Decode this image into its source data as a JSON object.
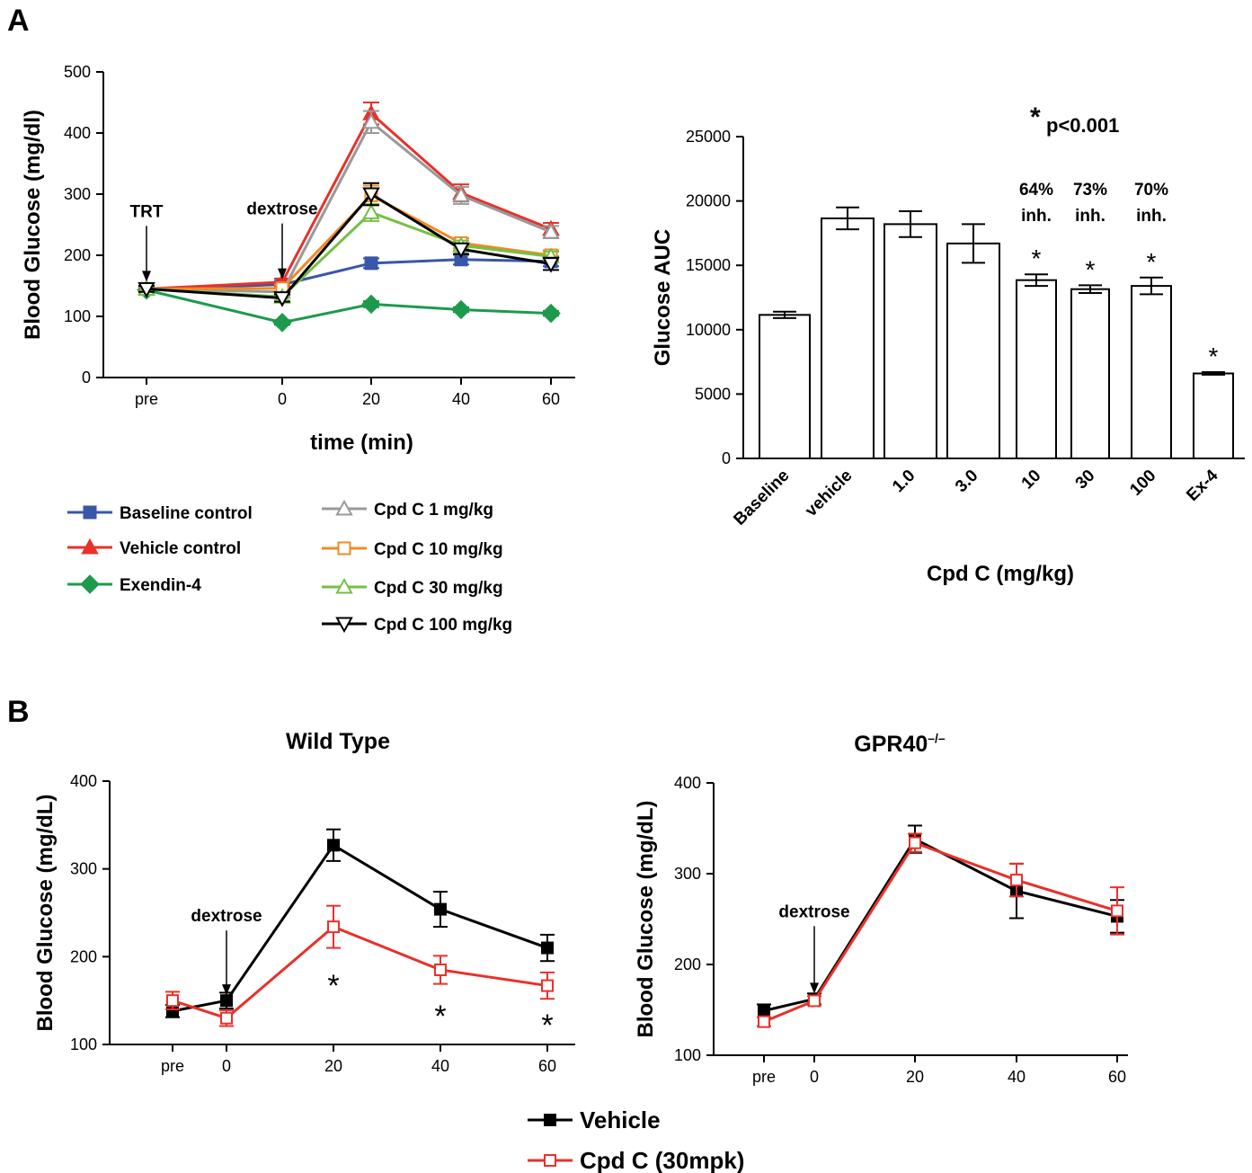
{
  "panels": {
    "a": "A",
    "b": "B"
  },
  "chart_data": [
    {
      "id": "a1",
      "type": "line",
      "xlabel": "time (min)",
      "ylabel": "Blood Glucose (mg/dl)",
      "xticks": [
        "pre",
        "0",
        "20",
        "40",
        "60"
      ],
      "xpos": [
        -45,
        0,
        20,
        40,
        60
      ],
      "ylim": [
        0,
        500
      ],
      "yticks": [
        "0",
        "100",
        "200",
        "300",
        "400",
        "500"
      ],
      "annotations": [
        {
          "text": "TRT",
          "x": -45,
          "y": 148
        },
        {
          "text": "dextrose",
          "x": 0,
          "y": 152
        }
      ],
      "series": [
        {
          "name": "Baseline control",
          "color": "#3a56a8",
          "marker": "square-filled",
          "y": [
            145,
            152,
            187,
            193,
            190
          ],
          "err": [
            5,
            6,
            8,
            8,
            8
          ]
        },
        {
          "name": "Vehicle control",
          "color": "#e8312a",
          "marker": "triangle-filled",
          "y": [
            145,
            156,
            432,
            302,
            243
          ],
          "err": [
            5,
            6,
            18,
            14,
            10
          ]
        },
        {
          "name": "Exendin-4",
          "color": "#1d9a4c",
          "marker": "diamond-filled",
          "y": [
            143,
            90,
            120,
            111,
            105
          ],
          "err": [
            4,
            4,
            5,
            4,
            4
          ]
        },
        {
          "name": "Cpd C 1 mg/kg",
          "color": "#999999",
          "marker": "triangle-open",
          "y": [
            145,
            140,
            418,
            298,
            238
          ],
          "err": [
            5,
            6,
            18,
            14,
            10
          ]
        },
        {
          "name": "Cpd C 10 mg/kg",
          "color": "#f08a24",
          "marker": "square-open",
          "y": [
            145,
            146,
            298,
            220,
            200
          ],
          "err": [
            5,
            6,
            16,
            8,
            8
          ]
        },
        {
          "name": "Cpd C 30 mg/kg",
          "color": "#74c043",
          "marker": "triangle-open",
          "y": [
            145,
            132,
            270,
            216,
            198
          ],
          "err": [
            5,
            6,
            14,
            8,
            8
          ]
        },
        {
          "name": "Cpd C 100 mg/kg",
          "color": "#000000",
          "marker": "triangle-down-open",
          "y": [
            145,
            130,
            300,
            210,
            186
          ],
          "err": [
            5,
            6,
            18,
            8,
            10
          ]
        }
      ]
    },
    {
      "id": "a2",
      "type": "bar",
      "xlabel": "Cpd C (mg/kg)",
      "ylabel": "Glucose AUC",
      "categories": [
        "Baseline",
        "vehicle",
        "1.0",
        "3.0",
        "10",
        "30",
        "100",
        "Ex-4"
      ],
      "values": [
        11150,
        18650,
        18200,
        16700,
        13850,
        13150,
        13400,
        6600
      ],
      "err": [
        250,
        850,
        1000,
        1500,
        450,
        300,
        650,
        100
      ],
      "ylim": [
        0,
        25000
      ],
      "yticks": [
        "0",
        "5000",
        "10000",
        "15000",
        "20000",
        "25000"
      ],
      "significance": [
        "",
        "",
        "",
        "",
        "*",
        "*",
        "*",
        "*"
      ],
      "inhibition": [
        {
          "index": 4,
          "pct": "64%",
          "label": "inh."
        },
        {
          "index": 5,
          "pct": "73%",
          "label": "inh."
        },
        {
          "index": 6,
          "pct": "70%",
          "label": "inh."
        }
      ],
      "pvalue_star": "*",
      "pvalue": "p<0.001"
    },
    {
      "id": "b1",
      "type": "line",
      "title": "Wild Type",
      "xlabel": "",
      "ylabel": "Blood Glucose (mg/dL)",
      "xticks": [
        "pre",
        "0",
        "20",
        "40",
        "60"
      ],
      "xpos": [
        -10,
        0,
        20,
        40,
        60
      ],
      "ylim": [
        100,
        400
      ],
      "yticks": [
        "100",
        "200",
        "300",
        "400"
      ],
      "annotations": [
        {
          "text": "dextrose",
          "x": 0,
          "y": 150
        }
      ],
      "stars": [
        {
          "x": 20,
          "text": "*"
        },
        {
          "x": 40,
          "text": "*"
        },
        {
          "x": 60,
          "text": "*"
        }
      ],
      "series": [
        {
          "name": "Vehicle",
          "color": "#000000",
          "marker": "square-filled",
          "y": [
            138,
            150,
            327,
            254,
            210
          ],
          "err": [
            7,
            9,
            18,
            20,
            15
          ]
        },
        {
          "name": "Cpd C (30mpk)",
          "color": "#e8312a",
          "marker": "square-open",
          "y": [
            150,
            130,
            234,
            185,
            167
          ],
          "err": [
            10,
            9,
            24,
            16,
            15
          ]
        }
      ]
    },
    {
      "id": "b2",
      "type": "line",
      "title": "GPR40",
      "title_sup": "–/–",
      "xlabel": "",
      "ylabel": "Blood Glucose (mg/dL)",
      "xticks": [
        "pre",
        "0",
        "20",
        "40",
        "60"
      ],
      "xpos": [
        -10,
        0,
        20,
        40,
        60
      ],
      "ylim": [
        100,
        400
      ],
      "yticks": [
        "100",
        "200",
        "300",
        "400"
      ],
      "annotations": [
        {
          "text": "dextrose",
          "x": 0,
          "y": 162
        }
      ],
      "series": [
        {
          "name": "Vehicle",
          "color": "#000000",
          "marker": "square-filled",
          "y": [
            149,
            162,
            338,
            281,
            253
          ],
          "err": [
            7,
            6,
            15,
            30,
            18
          ]
        },
        {
          "name": "Cpd C (30mpk)",
          "color": "#e8312a",
          "marker": "square-open",
          "y": [
            137,
            160,
            334,
            293,
            259
          ],
          "err": [
            5,
            5,
            10,
            18,
            26
          ]
        }
      ]
    }
  ]
}
